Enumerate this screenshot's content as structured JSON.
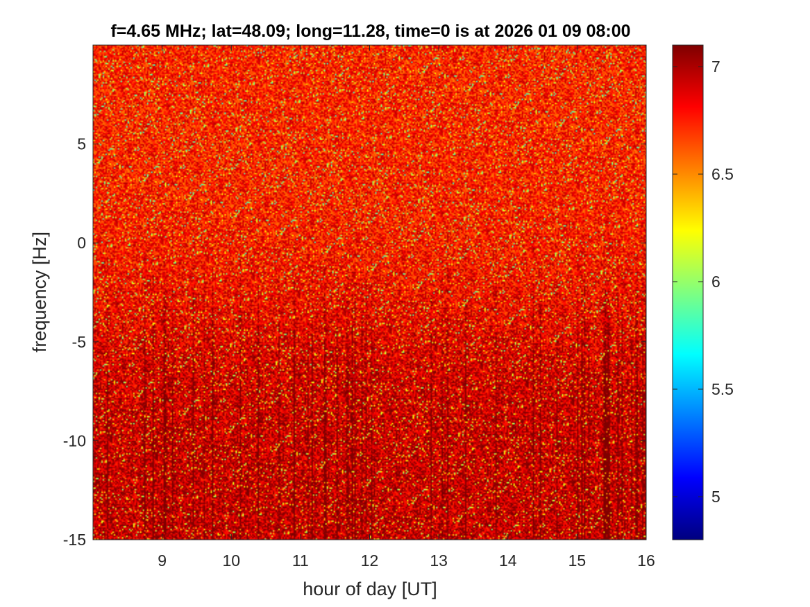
{
  "chart_data": {
    "type": "heatmap",
    "title": "f=4.65 MHz;  lat=48.09; long=11.28, time=0 is at 2026 01 09 08:00",
    "xlabel": "hour of day [UT]",
    "ylabel": "frequency [Hz]",
    "xlim": [
      8,
      16
    ],
    "ylim": [
      -15,
      10
    ],
    "x_ticks": [
      9,
      10,
      11,
      12,
      13,
      14,
      15,
      16
    ],
    "x_tick_labels": [
      "9",
      "10",
      "11",
      "12",
      "13",
      "14",
      "15",
      "16"
    ],
    "y_ticks": [
      -15,
      -10,
      -5,
      0,
      5
    ],
    "y_tick_labels": [
      "-15",
      "-10",
      "-5",
      "0",
      "5"
    ],
    "colorbar": {
      "colormap": "jet",
      "clim": [
        4.8,
        7.1
      ],
      "ticks": [
        5,
        5.5,
        6,
        6.5,
        7
      ],
      "tick_labels": [
        "5",
        "5.5",
        "6",
        "6.5",
        "7"
      ]
    },
    "values": {
      "typical_upper_band": 6.75,
      "typical_lower_band": 6.95,
      "transition_frequency_hz": -4
    },
    "grid": false
  }
}
